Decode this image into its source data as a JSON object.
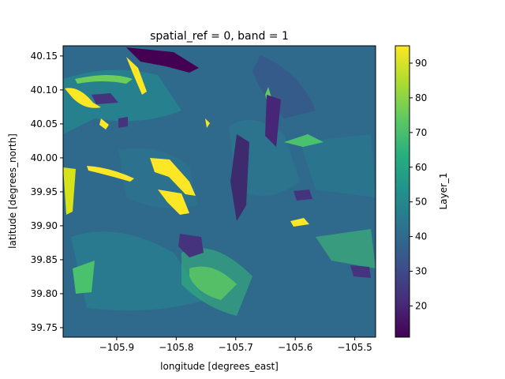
{
  "chart_data": {
    "type": "heatmap",
    "title": "spatial_ref = 0, band = 1",
    "xlabel": "longitude [degrees_east]",
    "ylabel": "latitude [degrees_north]",
    "xlim": [
      -105.99,
      -105.465
    ],
    "ylim": [
      39.736,
      40.165
    ],
    "x_ticks": [
      -105.9,
      -105.8,
      -105.7,
      -105.6,
      -105.5
    ],
    "x_tick_labels": [
      "−105.9",
      "−105.8",
      "−105.7",
      "−105.6",
      "−105.5"
    ],
    "y_ticks": [
      39.75,
      39.8,
      39.85,
      39.9,
      39.95,
      40.0,
      40.05,
      40.1,
      40.15
    ],
    "y_tick_labels": [
      "39.75",
      "39.80",
      "39.85",
      "39.90",
      "39.95",
      "40.00",
      "40.05",
      "40.10",
      "40.15"
    ],
    "colorbar": {
      "label": "Layer_1",
      "colormap": "viridis",
      "range": [
        11,
        95
      ],
      "ticks": [
        20,
        30,
        40,
        50,
        60,
        70,
        80,
        90
      ],
      "tick_labels": [
        "20",
        "30",
        "40",
        "50",
        "60",
        "70",
        "80",
        "90"
      ]
    },
    "grid": false
  }
}
